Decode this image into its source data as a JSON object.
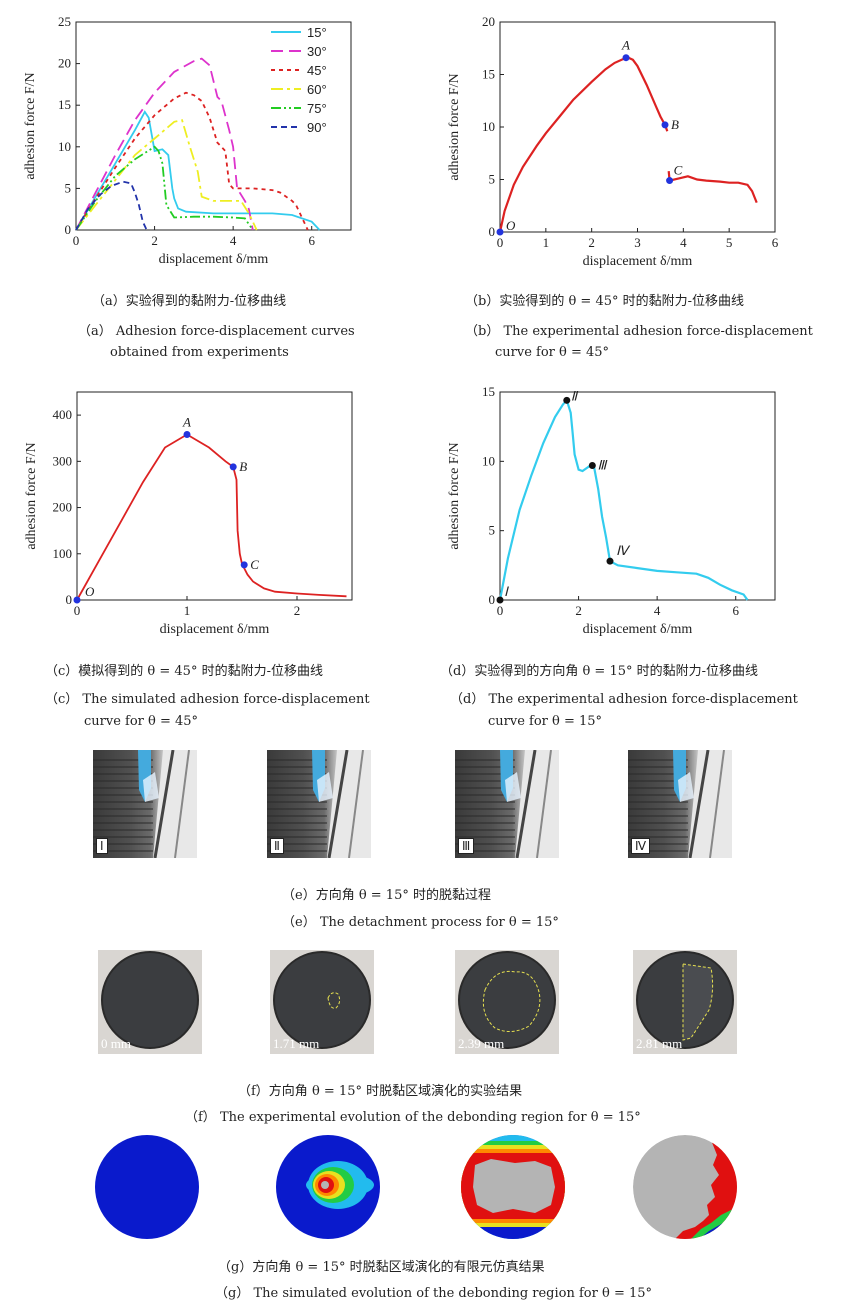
{
  "panel_a": {
    "chart_data": {
      "type": "line",
      "xlabel": "displacement δ/mm",
      "ylabel": "adhesion force F/N",
      "xlim": [
        0,
        7
      ],
      "ylim": [
        0,
        25
      ],
      "xticks": [
        "0",
        "2",
        "4",
        "6"
      ],
      "yticks": [
        "0",
        "5",
        "10",
        "15",
        "20",
        "25"
      ],
      "legend_position": "top-right",
      "series": [
        {
          "name": "15°",
          "color": "#33ccee",
          "dash": "solid",
          "x": [
            0,
            0.5,
            1.0,
            1.5,
            1.75,
            1.85,
            2.0,
            2.2,
            2.35,
            2.45,
            2.5,
            2.6,
            2.8,
            3.5,
            4.5,
            5.0,
            5.5,
            6.0,
            6.2
          ],
          "y": [
            0,
            4,
            8,
            12,
            14.2,
            13.5,
            9.5,
            9.7,
            9.0,
            5.0,
            3.8,
            2.6,
            2.2,
            2.0,
            2.0,
            2.0,
            1.8,
            1.0,
            0
          ]
        },
        {
          "name": "30°",
          "color": "#dd33cc",
          "dash": "12,6",
          "x": [
            0,
            0.5,
            1.0,
            1.5,
            2.0,
            2.5,
            3.0,
            3.2,
            3.4,
            3.6,
            3.7,
            3.9,
            4.0,
            4.1,
            4.3,
            4.4,
            4.5
          ],
          "y": [
            0,
            4.5,
            9,
            13.2,
            16.5,
            19,
            20.3,
            20.6,
            19.8,
            16,
            15.5,
            12,
            10,
            5,
            3.5,
            2.5,
            0
          ]
        },
        {
          "name": "45°",
          "color": "#dd2222",
          "dash": "4,4",
          "x": [
            0,
            0.5,
            1.0,
            1.5,
            2.0,
            2.5,
            2.8,
            3.0,
            3.2,
            3.4,
            3.6,
            3.7,
            3.8,
            3.9,
            4.0,
            4.5,
            5.0,
            5.2,
            5.5,
            5.6,
            5.9
          ],
          "y": [
            0,
            3.8,
            7.5,
            11,
            13.8,
            15.8,
            16.5,
            16.2,
            15.5,
            13.5,
            10.5,
            10.0,
            9.5,
            5.5,
            5.0,
            5.0,
            4.8,
            4.5,
            3.5,
            3.0,
            0
          ]
        },
        {
          "name": "60°",
          "color": "#eeee22",
          "dash": "12,4,3,4",
          "x": [
            0,
            0.5,
            1.0,
            1.5,
            2.0,
            2.5,
            2.7,
            2.9,
            3.1,
            3.2,
            3.5,
            4.0,
            4.2,
            4.4,
            4.6
          ],
          "y": [
            0,
            3,
            6,
            9,
            11,
            13,
            13.2,
            10,
            7,
            4,
            3.5,
            3.5,
            3.5,
            2,
            0
          ]
        },
        {
          "name": "75°",
          "color": "#22cc22",
          "dash": "10,3,2,3,2,3",
          "x": [
            0,
            0.5,
            1.0,
            1.5,
            2.0,
            2.1,
            2.2,
            2.3,
            2.5,
            3.0,
            3.5,
            4.0,
            4.3,
            4.5
          ],
          "y": [
            0,
            3.5,
            6.5,
            8.5,
            10,
            9.5,
            8,
            3,
            1.5,
            1.6,
            1.6,
            1.5,
            1.4,
            0
          ]
        },
        {
          "name": "90°",
          "color": "#2233aa",
          "dash": "6,4",
          "x": [
            0,
            0.3,
            0.6,
            0.9,
            1.2,
            1.4,
            1.5,
            1.6,
            1.7,
            1.8
          ],
          "y": [
            0,
            2.5,
            4.2,
            5.3,
            5.8,
            5.6,
            4.5,
            3,
            1,
            0
          ]
        }
      ]
    },
    "caption_cn": "（a）实验得到的黏附力-位移曲线",
    "caption_en_1": "（a） Adhesion force-displacement curves",
    "caption_en_2": "obtained from experiments"
  },
  "panel_b": {
    "chart_data": {
      "type": "line",
      "xlabel": "displacement δ/mm",
      "ylabel": "adhesion force F/N",
      "xlim": [
        0,
        6
      ],
      "ylim": [
        0,
        20
      ],
      "xticks": [
        "0",
        "1",
        "2",
        "3",
        "4",
        "5",
        "6"
      ],
      "yticks": [
        "0",
        "5",
        "10",
        "15",
        "20"
      ],
      "series": [
        {
          "color": "#dd2222",
          "x": [
            0,
            0.1,
            0.3,
            0.5,
            0.8,
            1.0,
            1.3,
            1.6,
            2.0,
            2.3,
            2.5,
            2.7,
            2.8,
            2.9,
            3.0,
            3.2,
            3.4,
            3.5,
            3.6,
            3.65
          ],
          "y": [
            0,
            2,
            4.5,
            6.2,
            8.2,
            9.4,
            11,
            12.6,
            14.3,
            15.5,
            16.1,
            16.5,
            16.6,
            16.4,
            15.8,
            14,
            12,
            11,
            10.2,
            9.6
          ]
        },
        {
          "color": "#dd2222",
          "x": [
            3.68,
            3.7,
            3.9,
            4.1,
            4.3,
            4.5,
            4.8,
            5.0,
            5.2,
            5.4,
            5.5,
            5.6
          ],
          "y": [
            5.8,
            4.9,
            5.1,
            5.3,
            5.0,
            4.9,
            4.8,
            4.7,
            4.7,
            4.5,
            3.9,
            2.8
          ]
        }
      ],
      "points": [
        {
          "label": "O",
          "x": 0,
          "y": 0
        },
        {
          "label": "A",
          "x": 2.75,
          "y": 16.6
        },
        {
          "label": "B",
          "x": 3.6,
          "y": 10.2
        },
        {
          "label": "C",
          "x": 3.7,
          "y": 4.9
        }
      ]
    },
    "caption_cn": "（b）实验得到的 θ = 45° 时的黏附力-位移曲线",
    "caption_en_1": "（b） The experimental adhesion force-displacement",
    "caption_en_2": "curve for θ = 45°"
  },
  "panel_c": {
    "chart_data": {
      "type": "line",
      "xlabel": "displacement δ/mm",
      "ylabel": "adhesion force F/N",
      "xlim": [
        0,
        2.5
      ],
      "ylim": [
        0,
        450
      ],
      "xticks": [
        "0",
        "1",
        "2"
      ],
      "yticks": [
        "0",
        "100",
        "200",
        "300",
        "400"
      ],
      "series": [
        {
          "color": "#dd2222",
          "x": [
            0,
            0.2,
            0.4,
            0.6,
            0.8,
            1.0,
            1.2,
            1.35,
            1.42,
            1.45,
            1.46,
            1.48,
            1.5,
            1.55,
            1.6,
            1.7,
            1.8,
            2.0,
            2.2,
            2.45
          ],
          "y": [
            0,
            85,
            170,
            255,
            330,
            358,
            330,
            300,
            288,
            260,
            150,
            100,
            78,
            55,
            40,
            25,
            18,
            14,
            11,
            8
          ]
        }
      ],
      "points": [
        {
          "label": "O",
          "x": 0,
          "y": 0
        },
        {
          "label": "A",
          "x": 1.0,
          "y": 358
        },
        {
          "label": "B",
          "x": 1.42,
          "y": 288
        },
        {
          "label": "C",
          "x": 1.52,
          "y": 76
        }
      ]
    },
    "caption_cn": "（c）模拟得到的 θ = 45° 时的黏附力-位移曲线",
    "caption_en_1": "（c） The simulated adhesion force-displacement",
    "caption_en_2": "curve for θ = 45°"
  },
  "panel_d": {
    "chart_data": {
      "type": "line",
      "xlabel": "displacement δ/mm",
      "ylabel": "adhesion force F/N",
      "xlim": [
        0,
        7
      ],
      "ylim": [
        0,
        15
      ],
      "xticks": [
        "0",
        "2",
        "4",
        "6"
      ],
      "yticks": [
        "0",
        "5",
        "10",
        "15"
      ],
      "series": [
        {
          "color": "#33ccee",
          "x": [
            0,
            0.2,
            0.5,
            0.8,
            1.1,
            1.4,
            1.6,
            1.7,
            1.8,
            1.85,
            1.9,
            2.0,
            2.1,
            2.3,
            2.4,
            2.5,
            2.6,
            2.7,
            2.8,
            3.0,
            3.5,
            4.0,
            4.5,
            5.0,
            5.3,
            5.6,
            5.9,
            6.2,
            6.3
          ],
          "y": [
            0,
            3,
            6.5,
            9,
            11.3,
            13.2,
            14.1,
            14.4,
            13.5,
            12,
            10.5,
            9.4,
            9.3,
            9.7,
            9.5,
            8,
            6,
            4.5,
            2.8,
            2.5,
            2.3,
            2.1,
            2.0,
            1.9,
            1.6,
            1.1,
            0.7,
            0.4,
            0
          ]
        }
      ],
      "points": [
        {
          "label": "Ⅰ",
          "x": 0,
          "y": 0
        },
        {
          "label": "Ⅱ",
          "x": 1.7,
          "y": 14.4
        },
        {
          "label": "Ⅲ",
          "x": 2.35,
          "y": 9.7
        },
        {
          "label": "Ⅳ",
          "x": 2.8,
          "y": 2.8
        }
      ]
    },
    "caption_cn": "（d）实验得到的方向角 θ = 15° 时的黏附力-位移曲线",
    "caption_en_1": "（d） The experimental adhesion force-displacement",
    "caption_en_2": "curve for θ = 15°"
  },
  "panel_e": {
    "frames": [
      "Ⅰ",
      "Ⅱ",
      "Ⅲ",
      "Ⅳ"
    ],
    "caption_cn": "（e）方向角 θ = 15° 时的脱黏过程",
    "caption_en": "（e） The detachment process for θ = 15°"
  },
  "panel_f": {
    "frames": [
      "0 mm",
      "1.71 mm",
      "2.39 mm",
      "2.81 mm"
    ],
    "caption_cn": "（f）方向角 θ = 15° 时脱黏区域演化的实验结果",
    "caption_en": "（f） The experimental evolution of the debonding region for θ = 15°"
  },
  "panel_g": {
    "colors": {
      "intact": "#0a1acc",
      "debonded": "#b4b4b4",
      "ring_red": "#e01010",
      "ring_orange": "#ff8800",
      "ring_yellow": "#e8e020",
      "ring_green": "#22cc44",
      "ring_cyan": "#22bbee"
    },
    "caption_cn": "（g）方向角 θ = 15° 时脱黏区域演化的有限元仿真结果",
    "caption_en": "（g） The simulated evolution of the debonding region for θ = 15°"
  }
}
